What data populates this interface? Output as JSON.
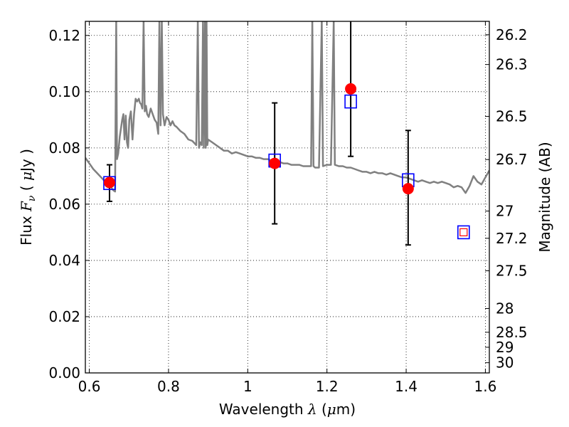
{
  "chart_data": {
    "type": "scatter",
    "title": "",
    "xlabel": {
      "prefix": "Wavelength ",
      "symbol": "λ",
      "unit_open": " (",
      "unit_mu": "μ",
      "unit_close": "m)"
    },
    "ylabel": {
      "prefix": "Flux ",
      "symbol": "F",
      "sub": "ν",
      "unit_open": " ( ",
      "unit_mu": "μ",
      "unit_close": "Jy )"
    },
    "y2label": "Magnitude (AB)",
    "xlim": [
      0.59,
      1.61
    ],
    "ylim": [
      0.0,
      0.125
    ],
    "grid": true,
    "x_ticks": [
      {
        "v": 0.6,
        "label": "0.6"
      },
      {
        "v": 0.8,
        "label": "0.8"
      },
      {
        "v": 1.0,
        "label": "1"
      },
      {
        "v": 1.2,
        "label": "1.2"
      },
      {
        "v": 1.4,
        "label": "1.4"
      },
      {
        "v": 1.6,
        "label": "1.6"
      }
    ],
    "y_ticks": [
      {
        "v": 0.0,
        "label": "0.00"
      },
      {
        "v": 0.02,
        "label": "0.02"
      },
      {
        "v": 0.04,
        "label": "0.04"
      },
      {
        "v": 0.06,
        "label": "0.06"
      },
      {
        "v": 0.08,
        "label": "0.08"
      },
      {
        "v": 0.1,
        "label": "0.10"
      },
      {
        "v": 0.12,
        "label": "0.12"
      }
    ],
    "mag_ticks": [
      {
        "mag": 26.2,
        "label": "26.2"
      },
      {
        "mag": 26.3,
        "label": "26.3"
      },
      {
        "mag": 26.5,
        "label": "26.5"
      },
      {
        "mag": 26.7,
        "label": "26.7"
      },
      {
        "mag": 27.0,
        "label": "27"
      },
      {
        "mag": 27.2,
        "label": "27.2"
      },
      {
        "mag": 27.5,
        "label": "27.5"
      },
      {
        "mag": 28.0,
        "label": "28"
      },
      {
        "mag": 28.5,
        "label": "28.5"
      },
      {
        "mag": 29.0,
        "label": "29"
      },
      {
        "mag": 30.0,
        "label": "30"
      }
    ],
    "series": [
      {
        "kind": "model_spectrum",
        "color": "#808080",
        "points": [
          [
            0.59,
            0.0765
          ],
          [
            0.6,
            0.0745
          ],
          [
            0.61,
            0.0725
          ],
          [
            0.62,
            0.071
          ],
          [
            0.63,
            0.0695
          ],
          [
            0.64,
            0.068
          ],
          [
            0.65,
            0.067
          ],
          [
            0.655,
            0.066
          ],
          [
            0.66,
            0.065
          ],
          [
            0.665,
            0.0645
          ],
          [
            0.668,
            0.125
          ],
          [
            0.67,
            0.076
          ],
          [
            0.673,
            0.078
          ],
          [
            0.677,
            0.084
          ],
          [
            0.68,
            0.087
          ],
          [
            0.683,
            0.09
          ],
          [
            0.686,
            0.092
          ],
          [
            0.689,
            0.083
          ],
          [
            0.692,
            0.0915
          ],
          [
            0.695,
            0.082
          ],
          [
            0.698,
            0.08
          ],
          [
            0.701,
            0.09
          ],
          [
            0.705,
            0.093
          ],
          [
            0.709,
            0.083
          ],
          [
            0.713,
            0.092
          ],
          [
            0.717,
            0.0975
          ],
          [
            0.721,
            0.0965
          ],
          [
            0.725,
            0.0975
          ],
          [
            0.728,
            0.096
          ],
          [
            0.731,
            0.0955
          ],
          [
            0.734,
            0.094
          ],
          [
            0.737,
            0.125
          ],
          [
            0.74,
            0.093
          ],
          [
            0.743,
            0.095
          ],
          [
            0.746,
            0.092
          ],
          [
            0.75,
            0.091
          ],
          [
            0.755,
            0.094
          ],
          [
            0.76,
            0.092
          ],
          [
            0.765,
            0.09
          ],
          [
            0.77,
            0.089
          ],
          [
            0.774,
            0.085
          ],
          [
            0.777,
            0.125
          ],
          [
            0.78,
            0.088
          ],
          [
            0.783,
            0.125
          ],
          [
            0.786,
            0.092
          ],
          [
            0.79,
            0.088
          ],
          [
            0.795,
            0.091
          ],
          [
            0.8,
            0.09
          ],
          [
            0.805,
            0.088
          ],
          [
            0.81,
            0.0895
          ],
          [
            0.815,
            0.088
          ],
          [
            0.82,
            0.0875
          ],
          [
            0.83,
            0.086
          ],
          [
            0.84,
            0.085
          ],
          [
            0.85,
            0.083
          ],
          [
            0.86,
            0.0825
          ],
          [
            0.87,
            0.081
          ],
          [
            0.874,
            0.125
          ],
          [
            0.877,
            0.08
          ],
          [
            0.88,
            0.082
          ],
          [
            0.884,
            0.081
          ],
          [
            0.887,
            0.125
          ],
          [
            0.889,
            0.08
          ],
          [
            0.892,
            0.125
          ],
          [
            0.894,
            0.08
          ],
          [
            0.896,
            0.125
          ],
          [
            0.898,
            0.081
          ],
          [
            0.9,
            0.083
          ],
          [
            0.91,
            0.082
          ],
          [
            0.92,
            0.081
          ],
          [
            0.93,
            0.08
          ],
          [
            0.94,
            0.079
          ],
          [
            0.95,
            0.079
          ],
          [
            0.96,
            0.078
          ],
          [
            0.97,
            0.0785
          ],
          [
            0.98,
            0.078
          ],
          [
            0.99,
            0.0775
          ],
          [
            1.0,
            0.077
          ],
          [
            1.01,
            0.077
          ],
          [
            1.02,
            0.0765
          ],
          [
            1.03,
            0.0765
          ],
          [
            1.04,
            0.076
          ],
          [
            1.05,
            0.076
          ],
          [
            1.06,
            0.0755
          ],
          [
            1.07,
            0.075
          ],
          [
            1.08,
            0.075
          ],
          [
            1.09,
            0.0745
          ],
          [
            1.1,
            0.0745
          ],
          [
            1.11,
            0.074
          ],
          [
            1.12,
            0.074
          ],
          [
            1.13,
            0.074
          ],
          [
            1.14,
            0.0735
          ],
          [
            1.15,
            0.0735
          ],
          [
            1.16,
            0.0735
          ],
          [
            1.163,
            0.125
          ],
          [
            1.166,
            0.0735
          ],
          [
            1.17,
            0.073
          ],
          [
            1.18,
            0.073
          ],
          [
            1.187,
            0.125
          ],
          [
            1.19,
            0.0735
          ],
          [
            1.2,
            0.074
          ],
          [
            1.21,
            0.074
          ],
          [
            1.217,
            0.125
          ],
          [
            1.22,
            0.074
          ],
          [
            1.23,
            0.0735
          ],
          [
            1.24,
            0.0735
          ],
          [
            1.25,
            0.073
          ],
          [
            1.26,
            0.073
          ],
          [
            1.27,
            0.0725
          ],
          [
            1.28,
            0.072
          ],
          [
            1.29,
            0.0715
          ],
          [
            1.3,
            0.0715
          ],
          [
            1.31,
            0.071
          ],
          [
            1.32,
            0.0715
          ],
          [
            1.33,
            0.071
          ],
          [
            1.34,
            0.071
          ],
          [
            1.35,
            0.0705
          ],
          [
            1.36,
            0.071
          ],
          [
            1.37,
            0.0705
          ],
          [
            1.38,
            0.07
          ],
          [
            1.39,
            0.0695
          ],
          [
            1.4,
            0.0695
          ],
          [
            1.41,
            0.069
          ],
          [
            1.42,
            0.0685
          ],
          [
            1.43,
            0.068
          ],
          [
            1.44,
            0.0685
          ],
          [
            1.45,
            0.068
          ],
          [
            1.46,
            0.0675
          ],
          [
            1.47,
            0.068
          ],
          [
            1.48,
            0.0675
          ],
          [
            1.49,
            0.068
          ],
          [
            1.5,
            0.0675
          ],
          [
            1.51,
            0.067
          ],
          [
            1.52,
            0.066
          ],
          [
            1.53,
            0.0665
          ],
          [
            1.54,
            0.066
          ],
          [
            1.55,
            0.064
          ],
          [
            1.56,
            0.0665
          ],
          [
            1.57,
            0.07
          ],
          [
            1.58,
            0.068
          ],
          [
            1.59,
            0.067
          ],
          [
            1.6,
            0.0695
          ],
          [
            1.61,
            0.072
          ]
        ]
      },
      {
        "kind": "observed_flux",
        "color": "#ff0000",
        "points": [
          {
            "x": 0.651,
            "y": 0.0677,
            "yerr_low": 0.061,
            "yerr_high": 0.074
          },
          {
            "x": 1.068,
            "y": 0.0745,
            "yerr_low": 0.053,
            "yerr_high": 0.096
          },
          {
            "x": 1.26,
            "y": 0.101,
            "yerr_low": 0.077,
            "yerr_high": 0.125
          },
          {
            "x": 1.405,
            "y": 0.0655,
            "yerr_low": 0.0455,
            "yerr_high": 0.0862
          }
        ]
      },
      {
        "kind": "model_synthetic_flux",
        "color": "#0000ff",
        "points": [
          {
            "x": 0.651,
            "y": 0.0675
          },
          {
            "x": 1.068,
            "y": 0.0755
          },
          {
            "x": 1.26,
            "y": 0.0965
          },
          {
            "x": 1.405,
            "y": 0.0685
          },
          {
            "x": 1.545,
            "y": 0.05
          }
        ]
      },
      {
        "kind": "upper_limit",
        "color": "#ff0000",
        "points": [
          {
            "x": 1.545,
            "y": 0.05
          }
        ]
      }
    ]
  }
}
